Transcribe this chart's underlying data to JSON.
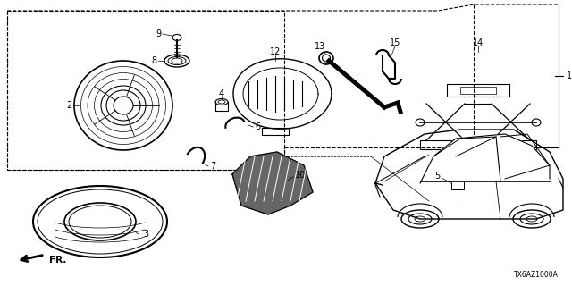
{
  "diagram_code": "TX6AZ1000A",
  "background_color": "#ffffff",
  "line_color": "#000000",
  "text_color": "#000000",
  "fig_width": 6.4,
  "fig_height": 3.2,
  "dpi": 100
}
